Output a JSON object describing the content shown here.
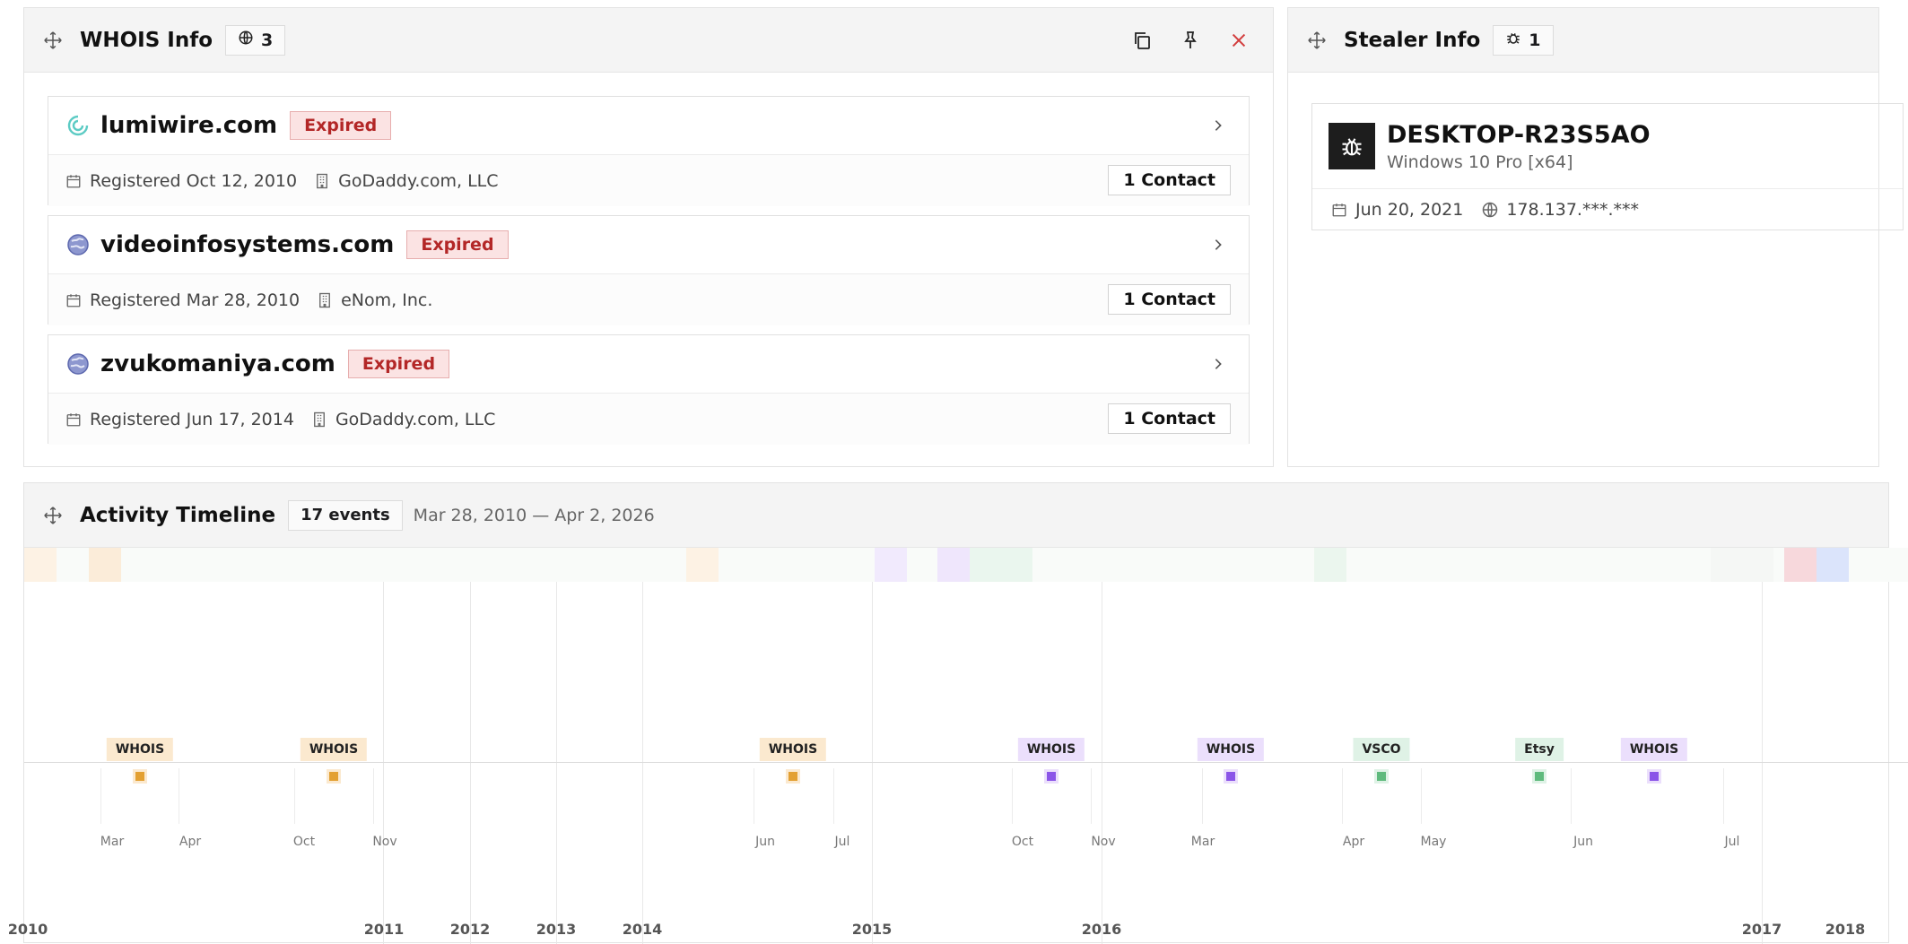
{
  "whois": {
    "title": "WHOIS Info",
    "count": "3",
    "domains": [
      {
        "name": "lumiwire.com",
        "status": "Expired",
        "registered": "Registered Oct 12, 2010",
        "registrar": "GoDaddy.com, LLC",
        "contacts": "1 Contact",
        "favicon": "swirl-icon"
      },
      {
        "name": "videoinfosystems.com",
        "status": "Expired",
        "registered": "Registered Mar 28, 2010",
        "registrar": "eNom, Inc.",
        "contacts": "1 Contact",
        "favicon": "globe-icon"
      },
      {
        "name": "zvukomaniya.com",
        "status": "Expired",
        "registered": "Registered Jun 17, 2014",
        "registrar": "GoDaddy.com, LLC",
        "contacts": "1 Contact",
        "favicon": "globe-icon"
      }
    ]
  },
  "stealer": {
    "title": "Stealer Info",
    "count": "1",
    "host": "DESKTOP-R23S5AO",
    "os": "Windows 10 Pro [x64]",
    "date": "Jun 20, 2021",
    "ip": "178.137.***.***"
  },
  "timeline": {
    "title": "Activity Timeline",
    "events_badge": "17 events",
    "range": "Mar 28, 2010 — Apr 2, 2026",
    "events": [
      {
        "label": "WHOIS",
        "kind": "whois-orange"
      },
      {
        "label": "WHOIS",
        "kind": "whois-orange"
      },
      {
        "label": "WHOIS",
        "kind": "whois-orange"
      },
      {
        "label": "WHOIS",
        "kind": "whois-purple"
      },
      {
        "label": "WHOIS",
        "kind": "whois-purple"
      },
      {
        "label": "VSCO",
        "kind": "green"
      },
      {
        "label": "Etsy",
        "kind": "green"
      },
      {
        "label": "WHOIS",
        "kind": "whois-purple"
      }
    ],
    "months": [
      "Mar",
      "Apr",
      "Oct",
      "Nov",
      "Jun",
      "Jul",
      "Oct",
      "Nov",
      "Mar",
      "Apr",
      "May",
      "Jun",
      "Jul"
    ],
    "years": [
      "2010",
      "2011",
      "2012",
      "2013",
      "2014",
      "2015",
      "2016",
      "2017",
      "2018"
    ]
  },
  "colors": {
    "orange": "#e3a032",
    "purple": "#8b55e8",
    "green": "#5fba7d",
    "expired_text": "#b32727",
    "close": "#d23c3c"
  }
}
